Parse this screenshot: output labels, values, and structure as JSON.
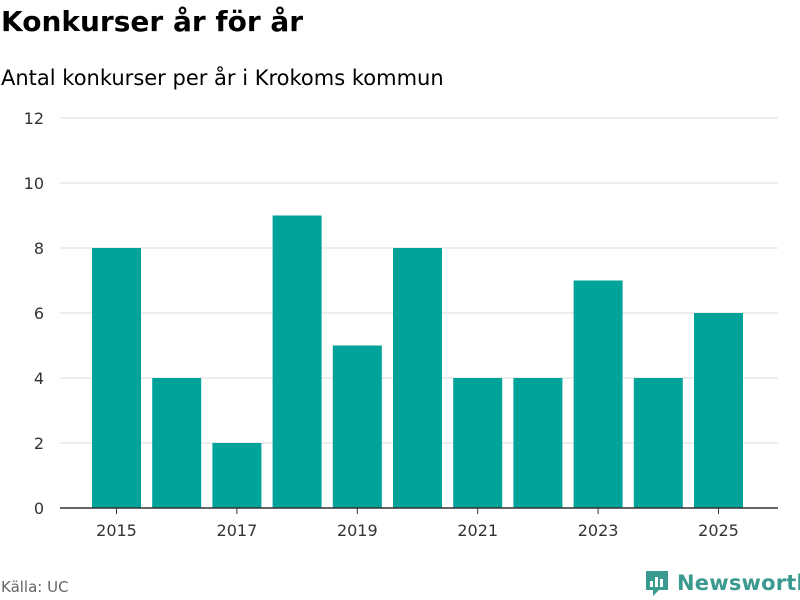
{
  "header": {
    "title": "Konkurser år för år",
    "subtitle": "Antal konkurser per år i Krokoms kommun"
  },
  "footer": {
    "source": "Källa: UC",
    "brand": "Newsworthy",
    "brand_color": "#3a9a8f"
  },
  "chart_data": {
    "type": "bar",
    "title": "Konkurser år för år",
    "subtitle": "Antal konkurser per år i Krokoms kommun",
    "xlabel": "",
    "ylabel": "",
    "categories": [
      "2015",
      "2016",
      "2017",
      "2018",
      "2019",
      "2020",
      "2021",
      "2022",
      "2023",
      "2024",
      "2025"
    ],
    "values": [
      8,
      4,
      2,
      9,
      5,
      8,
      4,
      4,
      7,
      4,
      6
    ],
    "x_tick_labels": [
      "2015",
      "2017",
      "2019",
      "2021",
      "2023",
      "2025"
    ],
    "y_ticks": [
      0,
      2,
      4,
      6,
      8,
      10,
      12
    ],
    "ylim": [
      0,
      12
    ],
    "grid": true,
    "bar_color": "#00a39a",
    "grid_color": "#dddddd",
    "axis_color": "#333333"
  }
}
